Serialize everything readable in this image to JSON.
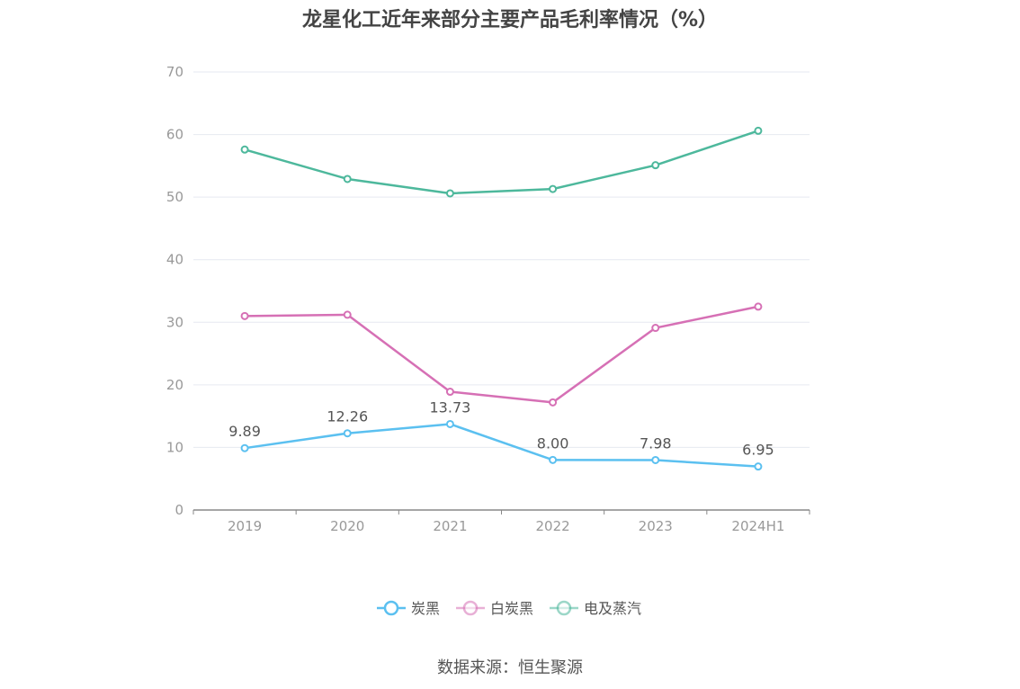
{
  "title": "龙星化工近年来部分主要产品毛利率情况（%）",
  "source": "数据来源：恒生聚源",
  "colors": {
    "axis": "#888888",
    "grid": "#e6e9f0",
    "tick": "#999999",
    "label": "#555555"
  },
  "chart_data": {
    "type": "line",
    "title": "龙星化工近年来部分主要产品毛利率情况（%）",
    "x": [
      "2019",
      "2020",
      "2021",
      "2022",
      "2023",
      "2024H1"
    ],
    "ylim": [
      0,
      70
    ],
    "yticks": [
      0,
      10,
      20,
      30,
      40,
      50,
      60,
      70
    ],
    "grid": true,
    "legend_position": "bottom",
    "series": [
      {
        "name": "炭黑",
        "color": "#5bc0f0",
        "values": [
          9.89,
          12.26,
          13.73,
          8.0,
          7.98,
          6.95
        ],
        "labels": [
          "9.89",
          "12.26",
          "13.73",
          "8.00",
          "7.98",
          "6.95"
        ],
        "show_labels": true
      },
      {
        "name": "白炭黑",
        "color": "#d670b5",
        "values": [
          31.0,
          31.2,
          18.9,
          17.2,
          29.1,
          32.5
        ],
        "show_labels": false
      },
      {
        "name": "电及蒸汽",
        "color": "#4db89c",
        "values": [
          57.6,
          52.9,
          50.6,
          51.3,
          55.1,
          60.6
        ],
        "show_labels": false
      }
    ]
  }
}
